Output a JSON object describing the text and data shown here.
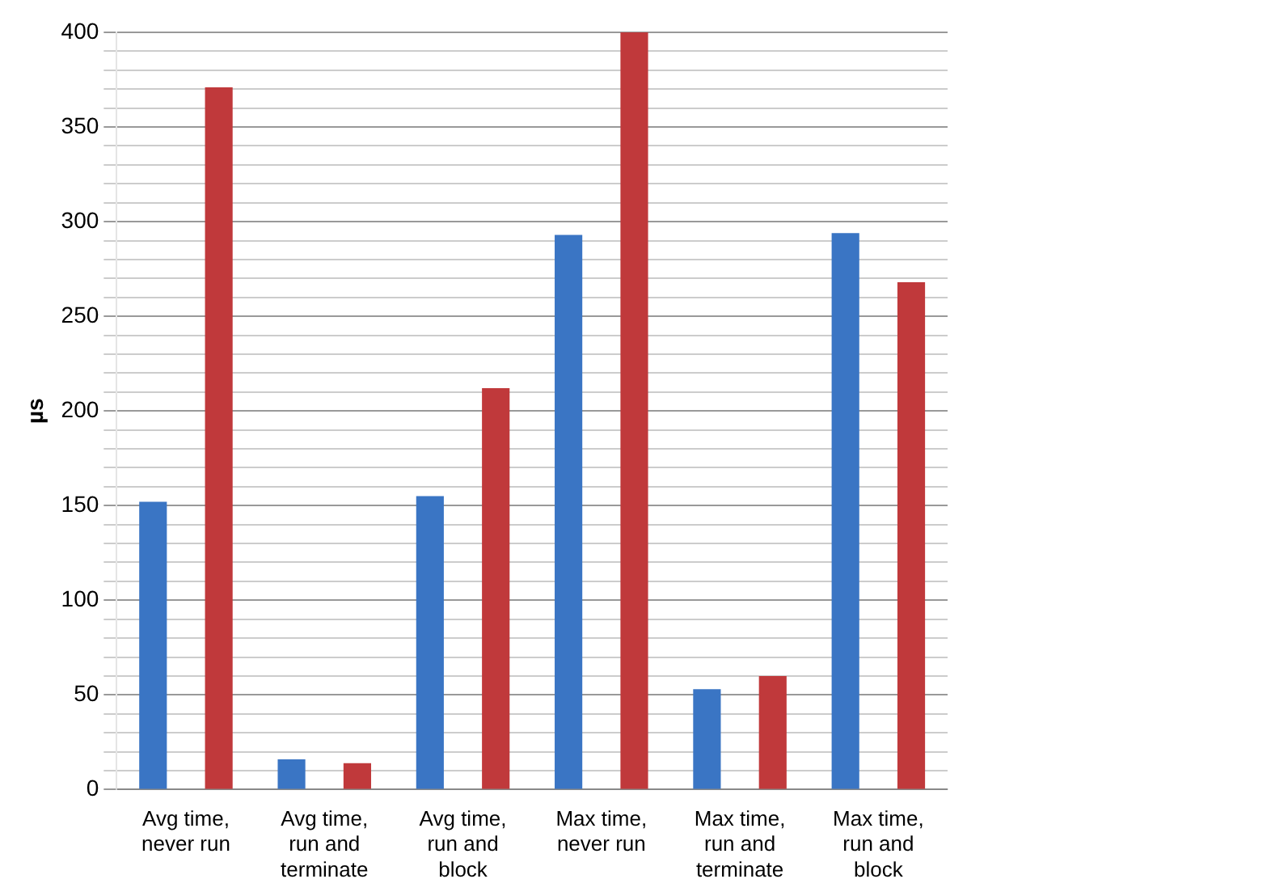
{
  "chart_data": {
    "type": "bar",
    "ylabel": "µs",
    "categories": [
      "Avg time, never run",
      "Avg time, run and terminate",
      "Avg time, run and block",
      "Max time, never run",
      "Max time, run and terminate",
      "Max time, run and block"
    ],
    "series": [
      {
        "color": "#3a75c4",
        "values": [
          152,
          16,
          155,
          293,
          53,
          294
        ]
      },
      {
        "color": "#c0393b",
        "values": [
          371,
          14,
          212,
          400,
          60,
          268
        ]
      }
    ],
    "ylim": [
      0,
      400
    ],
    "yticks": [
      0,
      {
        "value": 10,
        "label": null
      },
      {
        "value": 20,
        "label": null
      },
      {
        "value": 30,
        "label": null
      },
      {
        "value": 40,
        "label": null
      },
      50,
      {
        "value": 60,
        "label": null
      },
      {
        "value": 70,
        "label": null
      },
      {
        "value": 80,
        "label": null
      },
      {
        "value": 90,
        "label": null
      },
      100,
      {
        "value": 110,
        "label": null
      },
      {
        "value": 120,
        "label": null
      },
      {
        "value": 130,
        "label": null
      },
      {
        "value": 140,
        "label": null
      },
      150,
      {
        "value": 160,
        "label": null
      },
      {
        "value": 170,
        "label": null
      },
      {
        "value": 180,
        "label": null
      },
      {
        "value": 190,
        "label": null
      },
      200,
      {
        "value": 210,
        "label": null
      },
      {
        "value": 220,
        "label": null
      },
      {
        "value": 230,
        "label": null
      },
      {
        "value": 240,
        "label": null
      },
      250,
      {
        "value": 260,
        "label": null
      },
      {
        "value": 270,
        "label": null
      },
      {
        "value": 280,
        "label": null
      },
      {
        "value": 290,
        "label": null
      },
      300,
      {
        "value": 310,
        "label": null
      },
      {
        "value": 320,
        "label": null
      },
      {
        "value": 330,
        "label": null
      },
      {
        "value": 340,
        "label": null
      },
      350,
      {
        "value": 360,
        "label": null
      },
      {
        "value": 370,
        "label": null
      },
      {
        "value": 380,
        "label": null
      },
      {
        "value": 390,
        "label": null
      },
      400
    ],
    "grid": "y",
    "legend": false
  }
}
